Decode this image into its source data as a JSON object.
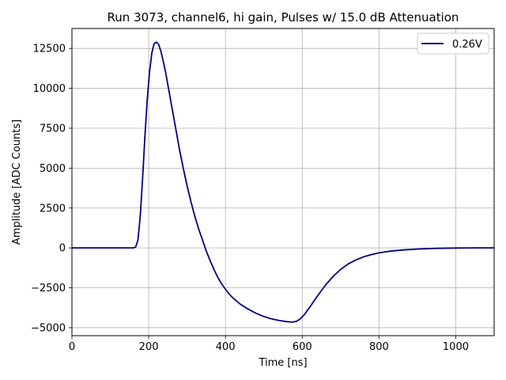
{
  "chart_data": {
    "type": "line",
    "title": "Run 3073, channel6, hi gain, Pulses w/ 15.0 dB Attenuation",
    "xlabel": "Time [ns]",
    "ylabel": "Amplitude [ADC Counts]",
    "xlim": [
      0,
      1100
    ],
    "ylim": [
      -5500,
      13750
    ],
    "xticks": [
      0,
      200,
      400,
      600,
      800,
      1000
    ],
    "yticks": [
      -5000,
      -2500,
      0,
      2500,
      5000,
      7500,
      10000,
      12500
    ],
    "grid": true,
    "legend_position": "top-right",
    "series": [
      {
        "name": "0.26V",
        "color": "#000080",
        "x": [
          0,
          160,
          166,
          172,
          178,
          184,
          190,
          196,
          202,
          208,
          214,
          220,
          226,
          232,
          238,
          244,
          250,
          256,
          262,
          268,
          274,
          280,
          290,
          300,
          310,
          320,
          330,
          340,
          350,
          360,
          370,
          380,
          390,
          400,
          410,
          420,
          430,
          440,
          450,
          460,
          480,
          500,
          520,
          540,
          560,
          575,
          585,
          595,
          605,
          620,
          640,
          660,
          680,
          700,
          720,
          740,
          760,
          780,
          800,
          830,
          860,
          900,
          950,
          1000,
          1050,
          1100
        ],
        "y": [
          0,
          0,
          50,
          500,
          2000,
          4300,
          6900,
          9200,
          11000,
          12200,
          12800,
          12900,
          12750,
          12300,
          11700,
          11000,
          10200,
          9400,
          8600,
          7800,
          7000,
          6200,
          5000,
          3900,
          2900,
          2000,
          1200,
          500,
          -200,
          -800,
          -1350,
          -1850,
          -2250,
          -2600,
          -2900,
          -3150,
          -3350,
          -3550,
          -3700,
          -3850,
          -4100,
          -4300,
          -4450,
          -4550,
          -4620,
          -4650,
          -4600,
          -4450,
          -4200,
          -3700,
          -3000,
          -2350,
          -1800,
          -1350,
          -1000,
          -750,
          -560,
          -420,
          -310,
          -200,
          -130,
          -70,
          -30,
          -10,
          0,
          0
        ]
      }
    ]
  }
}
